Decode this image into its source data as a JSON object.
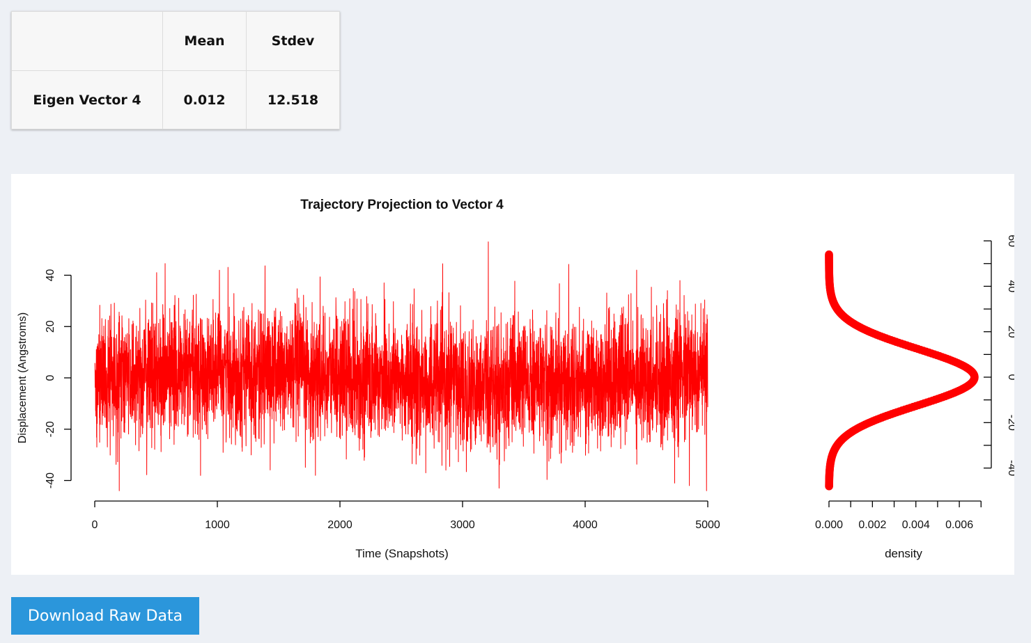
{
  "stats_table": {
    "headers": [
      "",
      "Mean",
      "Stdev"
    ],
    "rows": [
      {
        "label": "Eigen Vector 4",
        "mean": "0.012",
        "stdev": "12.518"
      }
    ]
  },
  "download_button_label": "Download Raw Data",
  "chart_data": [
    {
      "type": "line",
      "title": "Trajectory Projection to Vector 4",
      "xlabel": "Time (Snapshots)",
      "ylabel": "Displacement (Angstroms)",
      "xlim": [
        0,
        5000
      ],
      "ylim": [
        -44,
        53
      ],
      "x_ticks": [
        "0",
        "1000",
        "2000",
        "3000",
        "4000",
        "5000"
      ],
      "y_ticks": [
        "-40",
        "-20",
        "0",
        "20",
        "40"
      ],
      "color": "#ff0000",
      "series": [
        {
          "n_points": 5000,
          "mean": 0.012,
          "stdev": 12.518,
          "notable_extremes": [
            {
              "x": 200,
              "y": -44
            },
            {
              "x": 505,
              "y": 41
            },
            {
              "x": 1800,
              "y": -38
            },
            {
              "x": 2360,
              "y": 37
            },
            {
              "x": 2700,
              "y": -37
            },
            {
              "x": 3210,
              "y": 53
            },
            {
              "x": 4420,
              "y": 42
            },
            {
              "x": 4730,
              "y": -41
            },
            {
              "x": 4850,
              "y": -42
            },
            {
              "x": 4990,
              "y": -44
            }
          ]
        }
      ]
    },
    {
      "type": "line",
      "orientation": "vertical",
      "xlabel": "density",
      "ylabel": "",
      "xlim": [
        0,
        0.007
      ],
      "ylim": [
        -48,
        54
      ],
      "x_ticks": [
        "0.000",
        "0.002",
        "0.004",
        "0.006"
      ],
      "y_ticks": [
        "-40",
        "-20",
        "0",
        "20",
        "40",
        "60"
      ],
      "color": "#ff0000",
      "marker": "circle",
      "series": [
        {
          "mean": 0.0,
          "stdev": 12.5,
          "peak_density": 0.0067,
          "y_range": [
            -48,
            54
          ]
        }
      ]
    }
  ]
}
